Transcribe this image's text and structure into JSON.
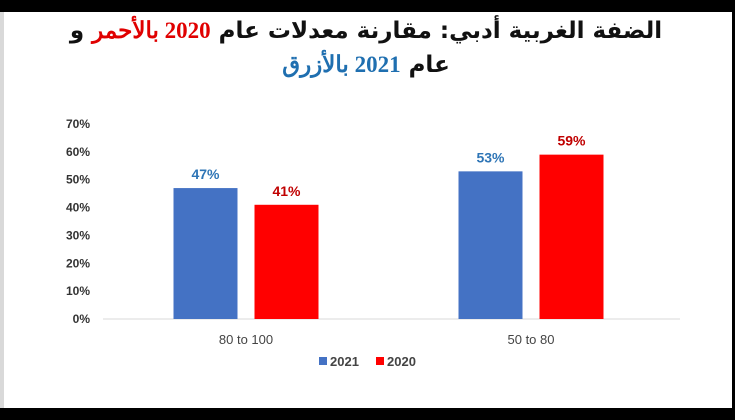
{
  "chart_data": {
    "type": "bar",
    "title": {
      "line1_part1": "الضفة الغربية أدبي: مقارنة معدلات عام ",
      "line1_red": "2020 بالأحمر",
      "line1_part2": " و",
      "line2_part1": "عام ",
      "line2_blue": "2021 بالأزرق"
    },
    "categories": [
      "80 to 100",
      "50 to 80"
    ],
    "series": [
      {
        "name": "2021",
        "values": [
          47,
          53
        ],
        "labels": [
          "47%",
          "53%"
        ],
        "color": "#4472c4",
        "label_color": "#2e75b6"
      },
      {
        "name": "2020",
        "values": [
          41,
          59
        ],
        "labels": [
          "41%",
          "59%"
        ],
        "color": "#ff0000",
        "label_color": "#c00000"
      }
    ],
    "yticks": [
      "0%",
      "10%",
      "20%",
      "30%",
      "40%",
      "50%",
      "60%",
      "70%"
    ],
    "ylim": [
      0,
      70
    ],
    "grid": false,
    "legend": "bottom"
  }
}
